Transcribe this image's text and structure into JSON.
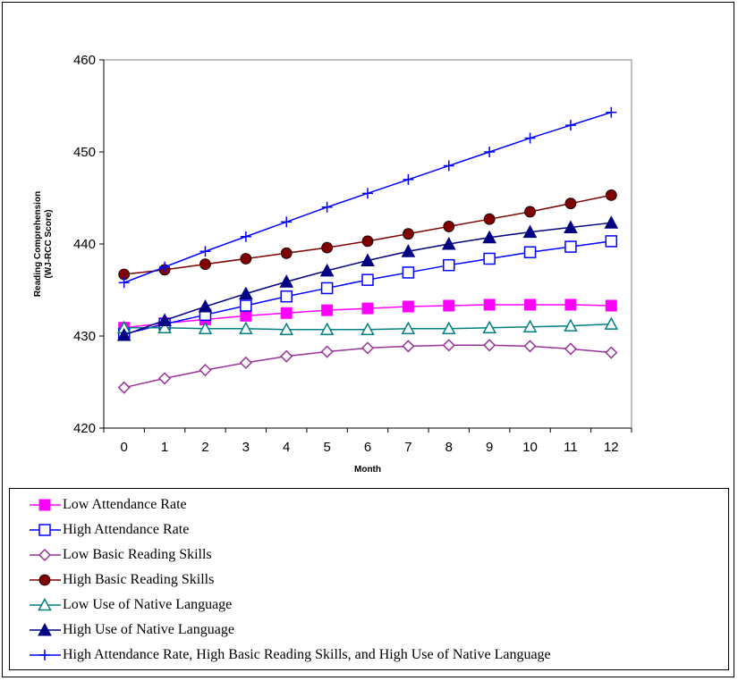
{
  "chart_data": {
    "type": "line",
    "title": "",
    "xlabel": "Month",
    "ylabel_line1": "Reading Comprehension",
    "ylabel_line2": "(WJ-RCC Score)",
    "x": [
      0,
      1,
      2,
      3,
      4,
      5,
      6,
      7,
      8,
      9,
      10,
      11,
      12
    ],
    "xlim": [
      -0.5,
      12.5
    ],
    "ylim": [
      420,
      460
    ],
    "yticks": [
      420,
      430,
      440,
      450,
      460
    ],
    "grid": false,
    "legend_position": "bottom",
    "series": [
      {
        "name": "Low Attendance Rate",
        "color": "#ff00ff",
        "marker": "square-filled",
        "values": [
          430.9,
          431.4,
          431.8,
          432.2,
          432.5,
          432.8,
          433.0,
          433.2,
          433.3,
          433.4,
          433.4,
          433.4,
          433.3
        ]
      },
      {
        "name": "High Attendance Rate",
        "color": "#0000ff",
        "marker": "square-open",
        "values": [
          430.2,
          431.3,
          432.3,
          433.3,
          434.3,
          435.2,
          436.1,
          436.9,
          437.7,
          438.4,
          439.1,
          439.7,
          440.3
        ]
      },
      {
        "name": "Low Basic Reading Skills",
        "color": "#993399",
        "marker": "diamond-open",
        "values": [
          424.4,
          425.4,
          426.3,
          427.1,
          427.8,
          428.3,
          428.7,
          428.9,
          429.0,
          429.0,
          428.9,
          428.6,
          428.2
        ]
      },
      {
        "name": "High Basic Reading Skills",
        "color": "#800000",
        "marker": "circle-filled",
        "values": [
          436.7,
          437.2,
          437.8,
          438.4,
          439.0,
          439.6,
          440.3,
          441.1,
          441.9,
          442.7,
          443.5,
          444.4,
          445.3
        ]
      },
      {
        "name": "Low Use of Native Language",
        "color": "#008080",
        "marker": "triangle-open",
        "values": [
          430.9,
          430.9,
          430.8,
          430.8,
          430.7,
          430.7,
          430.7,
          430.8,
          430.8,
          430.9,
          431.0,
          431.1,
          431.3
        ]
      },
      {
        "name": "High Use of Native Language",
        "color": "#000080",
        "marker": "triangle-filled",
        "values": [
          430.1,
          431.7,
          433.2,
          434.6,
          435.9,
          437.1,
          438.2,
          439.2,
          440.0,
          440.7,
          441.3,
          441.8,
          442.3
        ]
      },
      {
        "name": "High Attendance Rate, High Basic Reading Skills, and High Use of Native Language",
        "color": "#0000ff",
        "marker": "plus",
        "values": [
          435.8,
          437.5,
          439.2,
          440.8,
          442.4,
          444.0,
          445.5,
          447.0,
          448.5,
          450.0,
          451.5,
          452.9,
          454.3
        ]
      }
    ]
  }
}
